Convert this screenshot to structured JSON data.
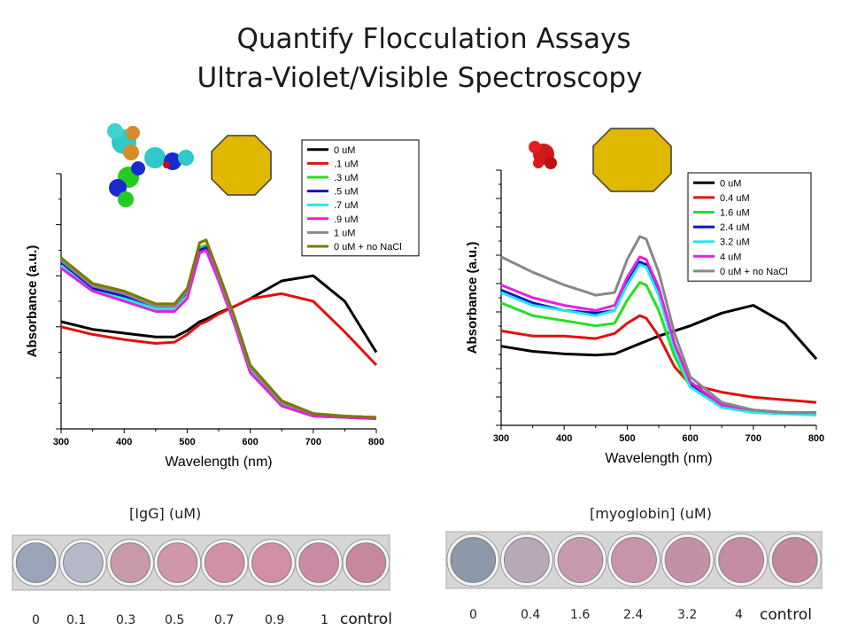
{
  "title_line1": "Quantify Flocculation Assays",
  "title_line2": "Ultra-Violet/Visible Spectroscopy",
  "colors": {
    "series": [
      "#000000",
      "#e01010",
      "#22e022",
      "#1010c8",
      "#22e8e8",
      "#e022e0",
      "#888888",
      "#7a7a00"
    ],
    "octagon_fill": "#e0b800",
    "octagon_stroke": "#3a3a3a",
    "well_strip": "#d8d8d8"
  },
  "chart_data": [
    {
      "type": "line",
      "xlabel": "Wavelength (nm)",
      "ylabel": "Absorbance (a.u.)",
      "xlim": [
        300,
        800
      ],
      "xticks": [
        "300",
        "400",
        "500",
        "600",
        "700",
        "800"
      ],
      "ylim": [
        0,
        1
      ],
      "y_tick_labels_shown": false,
      "legend": "top-right",
      "x": [
        300,
        350,
        400,
        450,
        480,
        500,
        520,
        530,
        550,
        575,
        600,
        650,
        700,
        750,
        800
      ],
      "series": [
        {
          "name": "0 uM",
          "values": [
            0.42,
            0.39,
            0.375,
            0.36,
            0.36,
            0.385,
            0.42,
            0.43,
            0.455,
            0.48,
            0.51,
            0.58,
            0.6,
            0.5,
            0.3
          ]
        },
        {
          "name": ".1 uM",
          "values": [
            0.4,
            0.37,
            0.35,
            0.335,
            0.34,
            0.37,
            0.41,
            0.42,
            0.45,
            0.48,
            0.51,
            0.53,
            0.5,
            0.38,
            0.25
          ]
        },
        {
          "name": ".3 uM",
          "values": [
            0.67,
            0.56,
            0.53,
            0.48,
            0.48,
            0.54,
            0.71,
            0.72,
            0.6,
            0.43,
            0.24,
            0.1,
            0.06,
            0.05,
            0.045
          ]
        },
        {
          "name": ".5 uM",
          "values": [
            0.65,
            0.55,
            0.52,
            0.47,
            0.47,
            0.53,
            0.7,
            0.71,
            0.59,
            0.42,
            0.23,
            0.09,
            0.05,
            0.045,
            0.04
          ]
        },
        {
          "name": ".7 uM",
          "values": [
            0.64,
            0.54,
            0.51,
            0.47,
            0.47,
            0.52,
            0.69,
            0.7,
            0.59,
            0.42,
            0.23,
            0.1,
            0.06,
            0.05,
            0.045
          ]
        },
        {
          "name": ".9 uM",
          "values": [
            0.63,
            0.54,
            0.5,
            0.46,
            0.46,
            0.51,
            0.69,
            0.7,
            0.58,
            0.41,
            0.22,
            0.09,
            0.05,
            0.045,
            0.04
          ]
        },
        {
          "name": "1 uM",
          "values": [
            0.66,
            0.56,
            0.53,
            0.48,
            0.48,
            0.54,
            0.73,
            0.74,
            0.6,
            0.43,
            0.24,
            0.1,
            0.06,
            0.05,
            0.045
          ]
        },
        {
          "name": "0 uM + no NaCl",
          "values": [
            0.67,
            0.57,
            0.54,
            0.49,
            0.49,
            0.55,
            0.73,
            0.74,
            0.61,
            0.44,
            0.25,
            0.11,
            0.06,
            0.05,
            0.045
          ]
        }
      ]
    },
    {
      "type": "line",
      "xlabel": "Wavelength (nm)",
      "ylabel": "Absorbance (a.u.)",
      "xlim": [
        300,
        800
      ],
      "xticks": [
        "300",
        "400",
        "500",
        "600",
        "700",
        "800"
      ],
      "ylim": [
        0,
        1
      ],
      "y_tick_labels_shown": false,
      "legend": "top-right",
      "x": [
        300,
        350,
        400,
        450,
        480,
        500,
        520,
        530,
        550,
        575,
        600,
        650,
        700,
        750,
        800
      ],
      "series": [
        {
          "name": "0 uM",
          "values": [
            0.31,
            0.29,
            0.28,
            0.275,
            0.28,
            0.3,
            0.32,
            0.33,
            0.35,
            0.37,
            0.39,
            0.44,
            0.47,
            0.4,
            0.26
          ]
        },
        {
          "name": "0.4 uM",
          "values": [
            0.37,
            0.35,
            0.35,
            0.34,
            0.36,
            0.4,
            0.43,
            0.42,
            0.35,
            0.23,
            0.16,
            0.13,
            0.11,
            0.1,
            0.09
          ]
        },
        {
          "name": "1.6 uM",
          "values": [
            0.48,
            0.43,
            0.41,
            0.39,
            0.4,
            0.49,
            0.56,
            0.55,
            0.45,
            0.27,
            0.15,
            0.08,
            0.06,
            0.05,
            0.05
          ]
        },
        {
          "name": "2.4 uM",
          "values": [
            0.53,
            0.48,
            0.45,
            0.44,
            0.45,
            0.56,
            0.64,
            0.63,
            0.52,
            0.31,
            0.16,
            0.08,
            0.06,
            0.05,
            0.05
          ]
        },
        {
          "name": "3.2 uM",
          "values": [
            0.52,
            0.47,
            0.45,
            0.43,
            0.45,
            0.55,
            0.63,
            0.62,
            0.51,
            0.3,
            0.15,
            0.07,
            0.05,
            0.045,
            0.04
          ]
        },
        {
          "name": "4 uM",
          "values": [
            0.55,
            0.5,
            0.47,
            0.45,
            0.47,
            0.58,
            0.66,
            0.65,
            0.54,
            0.32,
            0.17,
            0.08,
            0.06,
            0.05,
            0.05
          ]
        },
        {
          "name": "0 uM + no NaCl",
          "values": [
            0.66,
            0.6,
            0.55,
            0.51,
            0.52,
            0.65,
            0.74,
            0.73,
            0.6,
            0.36,
            0.19,
            0.09,
            0.06,
            0.05,
            0.05
          ]
        }
      ]
    }
  ],
  "plates": [
    {
      "label": "[IgG]  (uM)",
      "concentrations": [
        "0",
        "0.1",
        "0.3",
        "0.5",
        "0.7",
        "0.9",
        "1"
      ],
      "control": "control",
      "well_colors": [
        "#9aa4b8",
        "#b4b8c8",
        "#c89aa8",
        "#d097aa",
        "#d090a6",
        "#d28ea6",
        "#ca8ca4",
        "#c8889c"
      ]
    },
    {
      "label": "[myoglobin] (uM)",
      "concentrations": [
        "0",
        "0.4",
        "1.6",
        "2.4",
        "3.2",
        "4"
      ],
      "control": "control",
      "well_colors": [
        "#8a98a8",
        "#b8a8b8",
        "#c79ab0",
        "#c794ac",
        "#c490a8",
        "#c58ca6",
        "#c2889e"
      ]
    }
  ]
}
